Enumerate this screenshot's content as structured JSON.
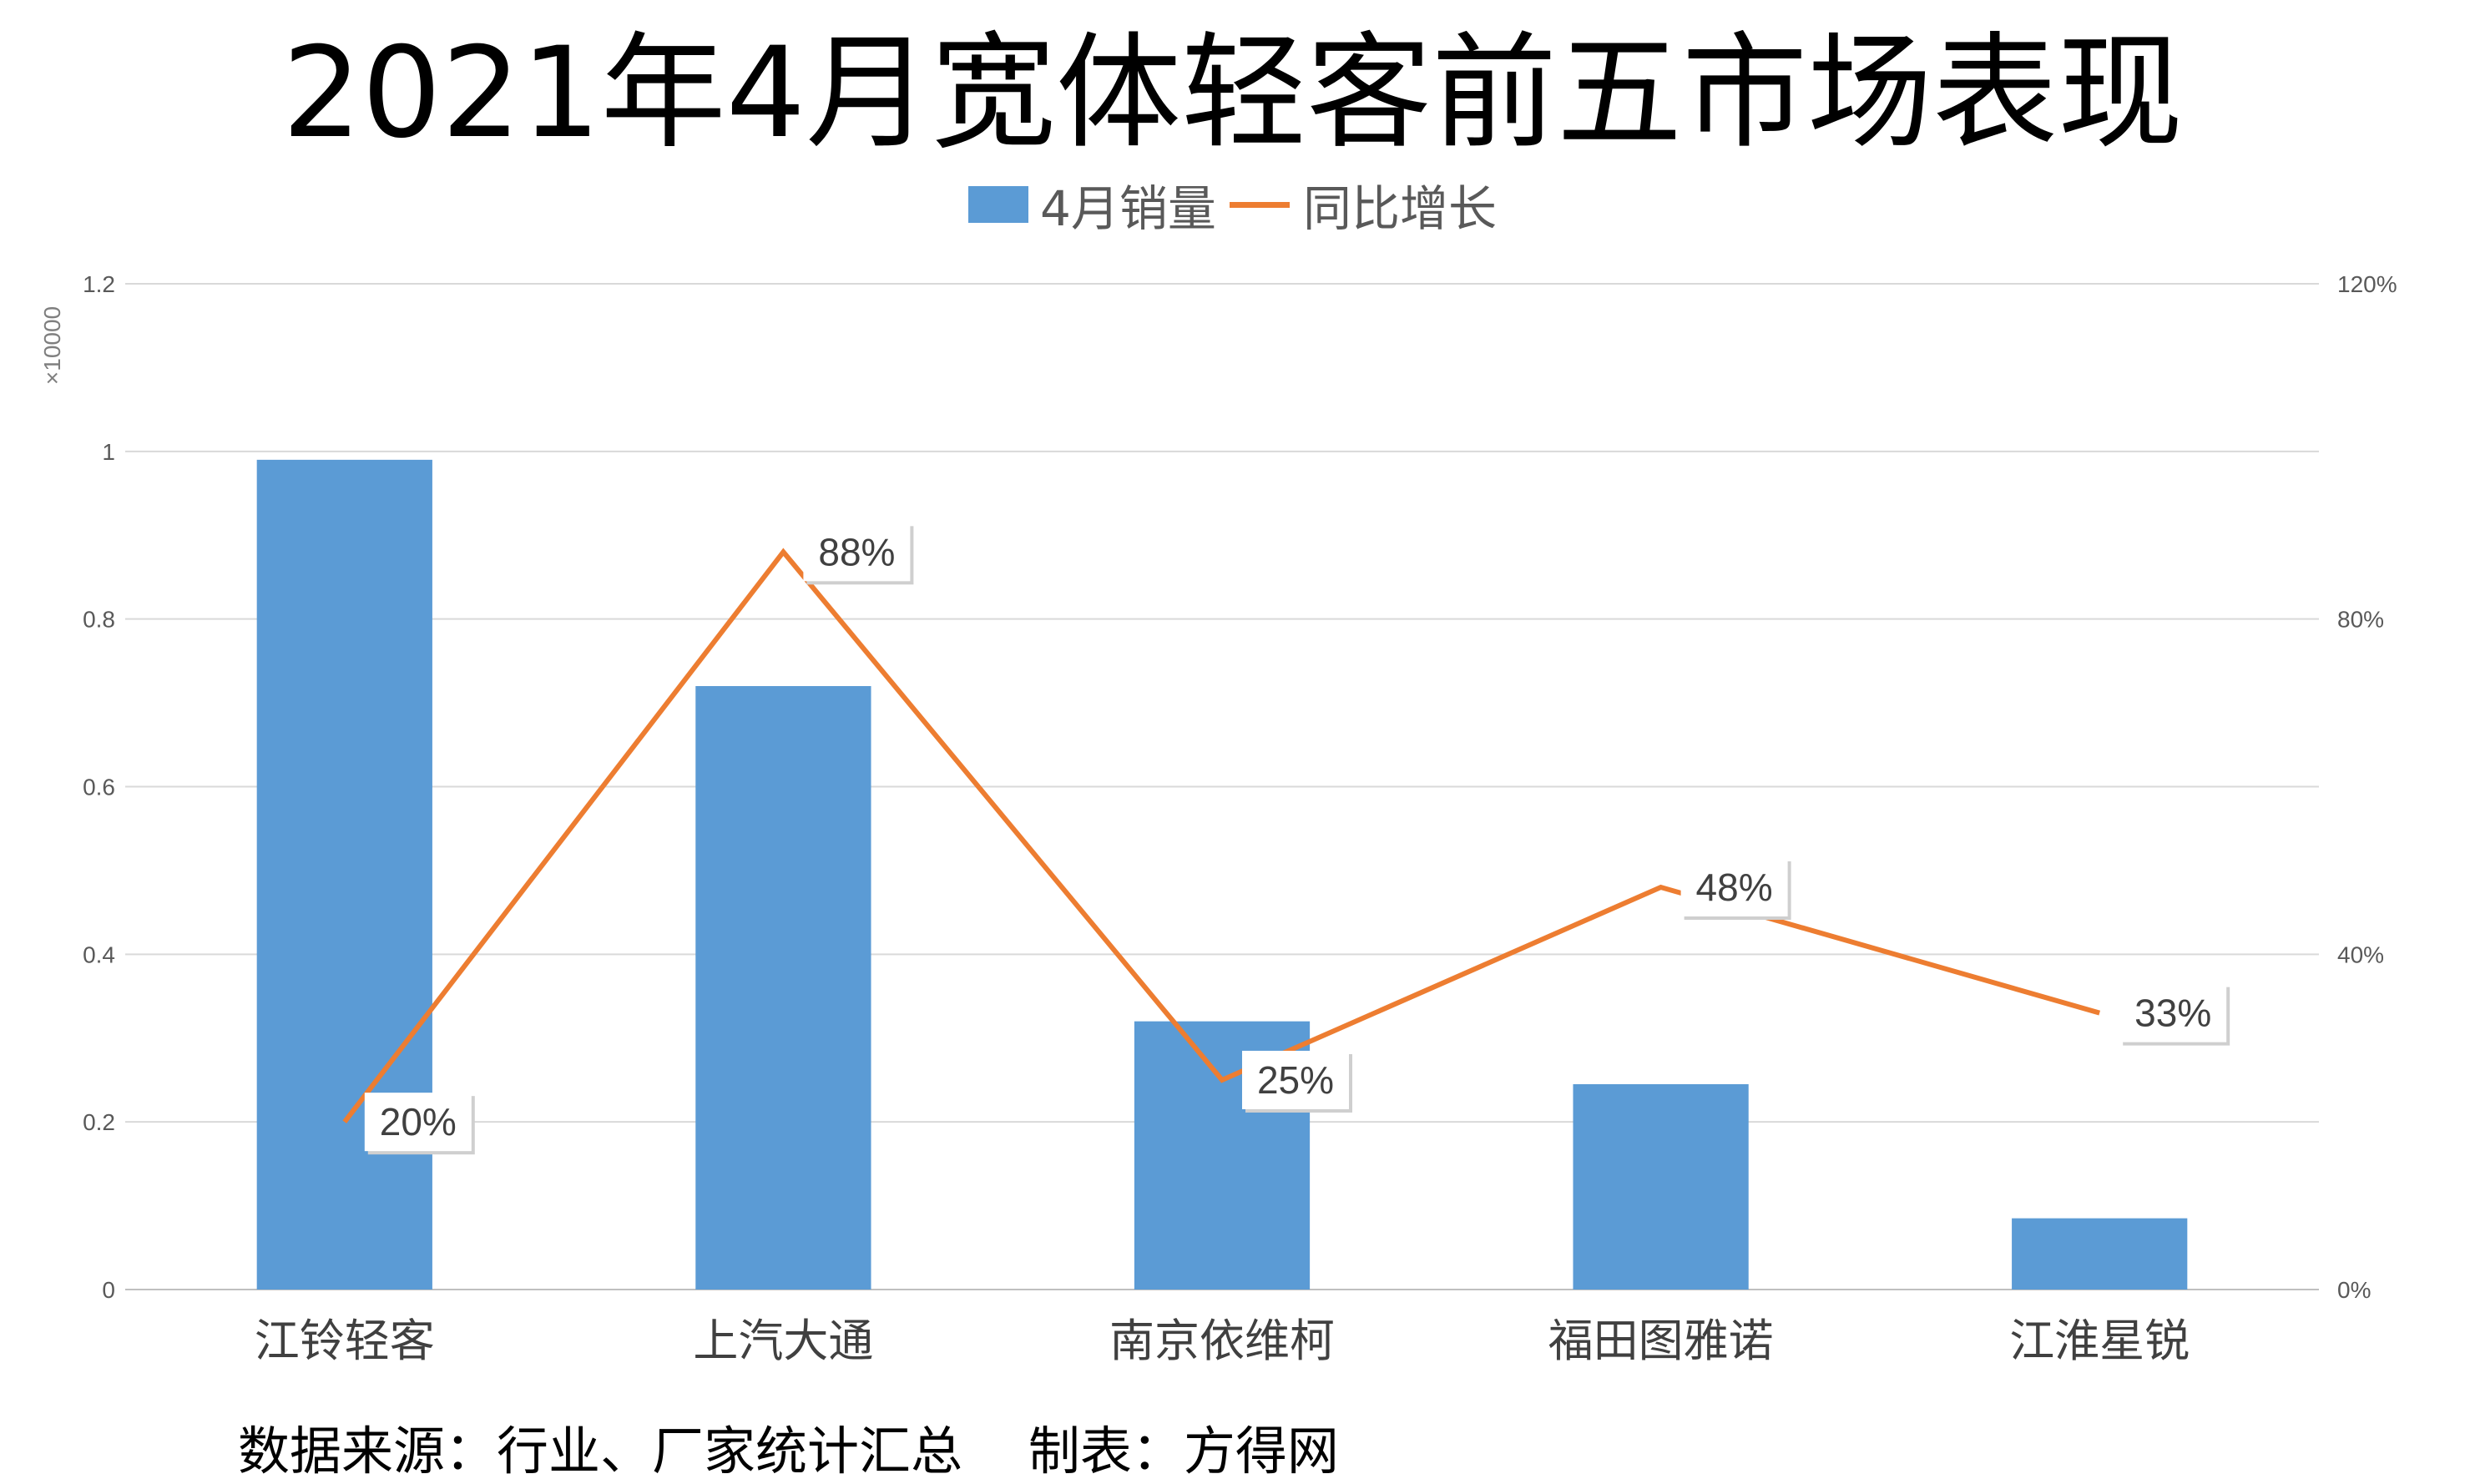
{
  "page": {
    "title": "2021年4月宽体轻客前五市场表现",
    "footer": "数据来源：行业、厂家统计汇总    制表：方得网"
  },
  "chart_data": {
    "type": "bar",
    "categories": [
      "江铃轻客",
      "上汽大通",
      "南京依维柯",
      "福田图雅诺",
      "江淮星锐"
    ],
    "series": [
      {
        "name": "4月销量",
        "type": "bar",
        "axis": "left",
        "color": "#5b9bd5",
        "values": [
          0.99,
          0.72,
          0.32,
          0.245,
          0.085
        ]
      },
      {
        "name": "同比增长",
        "type": "line",
        "axis": "right",
        "color": "#ed7d31",
        "values": [
          20,
          88,
          25,
          48,
          33
        ],
        "labels": [
          "20%",
          "88%",
          "25%",
          "48%",
          "33%"
        ]
      }
    ],
    "y_left": {
      "unit": "×10000",
      "ylim": [
        0,
        1.2
      ],
      "ticks": [
        "0",
        "0.2",
        "0.4",
        "0.6",
        "0.8",
        "1",
        "1.2"
      ]
    },
    "y_right": {
      "ylim": [
        0,
        120
      ],
      "ticks": [
        "0%",
        "40%",
        "80%",
        "120%"
      ]
    },
    "grid": true,
    "legend_position": "top-center"
  }
}
